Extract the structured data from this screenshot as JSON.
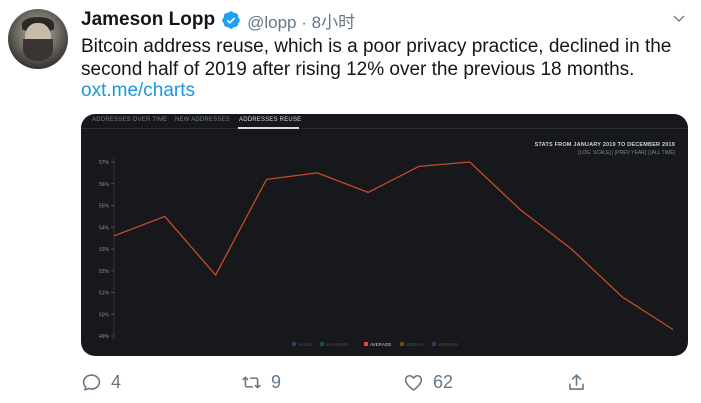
{
  "tweet": {
    "author_name": "Jameson Lopp",
    "handle": "@lopp",
    "time": "8小时",
    "text_line1": "Bitcoin address reuse, which is a poor privacy practice, declined in the",
    "text_line2": "second half of 2019 after rising 12% over the previous 18 months.",
    "link": "oxt.me/charts"
  },
  "media": {
    "tabs": [
      "ADDRESSES OVER TIME",
      "NEW ADDRESSES",
      "ADDRESSES REUSE"
    ],
    "active_tab": "ADDRESSES REUSE",
    "stats_title": "STATS FROM JANUARY 2019 TO DECEMBER 2019",
    "stats_sub": "[LOG. SCALE] | [PREV YEAR] | [ALL TIME]"
  },
  "chart_data": {
    "type": "line",
    "y_ticks": [
      "57%",
      "56%",
      "55%",
      "54%",
      "53%",
      "52%",
      "51%",
      "50%",
      "49%"
    ],
    "ylim": [
      49,
      57
    ],
    "grid": false,
    "legend_position": "bottom",
    "legend": [
      {
        "name": "VALUE",
        "color": "#5b5fc7"
      },
      {
        "name": "MAXIMUM",
        "color": "#2e8b57"
      },
      {
        "name": "AVERAGE",
        "color": "#e24c2c"
      },
      {
        "name": "MEDIAN",
        "color": "#c98a1e"
      },
      {
        "name": "MINIMUM",
        "color": "#8e44ad"
      }
    ],
    "series": [
      {
        "name": "AVERAGE",
        "color": "#c84a2a",
        "values": [
          53.6,
          54.5,
          51.8,
          56.2,
          56.5,
          55.6,
          56.8,
          57.0,
          54.8,
          53.0,
          50.8,
          49.3
        ]
      }
    ]
  },
  "actions": {
    "reply_count": "4",
    "retweet_count": "9",
    "like_count": "62"
  },
  "colors": {
    "link": "#1b95e0",
    "verified": "#1da1f2",
    "media_bg": "#16181b"
  }
}
